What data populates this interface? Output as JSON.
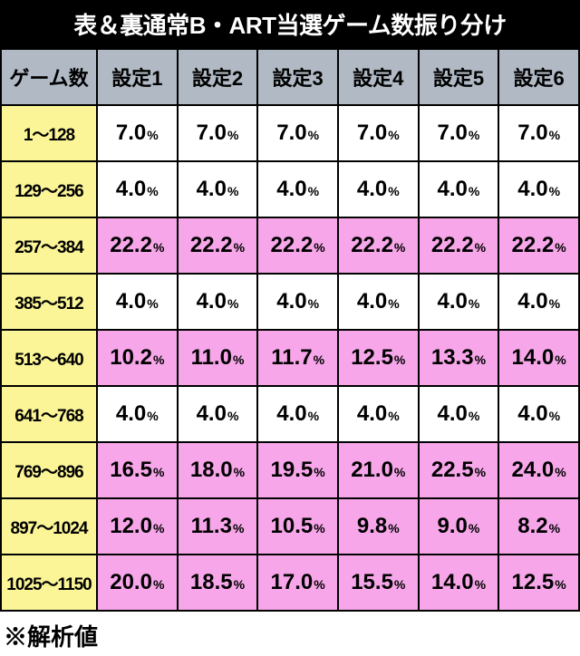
{
  "title": "表＆裏通常B・ART当選ゲーム数振り分け",
  "footnote": "※解析値",
  "pct_symbol": "%",
  "columns": [
    "ゲーム数",
    "設定1",
    "設定2",
    "設定3",
    "設定4",
    "設定5",
    "設定6"
  ],
  "header_bg": "#b0b9c4",
  "rowlabel_bg": "#fbf597",
  "highlight_bg": "#f7a7e9",
  "plain_bg": "#ffffff",
  "border_color": "#000000",
  "title_bg": "#000000",
  "title_color": "#ffffff",
  "rows": [
    {
      "label": "1～128",
      "highlight": false,
      "values": [
        "7.0",
        "7.0",
        "7.0",
        "7.0",
        "7.0",
        "7.0"
      ]
    },
    {
      "label": "129～256",
      "highlight": false,
      "values": [
        "4.0",
        "4.0",
        "4.0",
        "4.0",
        "4.0",
        "4.0"
      ]
    },
    {
      "label": "257～384",
      "highlight": true,
      "values": [
        "22.2",
        "22.2",
        "22.2",
        "22.2",
        "22.2",
        "22.2"
      ]
    },
    {
      "label": "385～512",
      "highlight": false,
      "values": [
        "4.0",
        "4.0",
        "4.0",
        "4.0",
        "4.0",
        "4.0"
      ]
    },
    {
      "label": "513～640",
      "highlight": true,
      "values": [
        "10.2",
        "11.0",
        "11.7",
        "12.5",
        "13.3",
        "14.0"
      ]
    },
    {
      "label": "641～768",
      "highlight": false,
      "values": [
        "4.0",
        "4.0",
        "4.0",
        "4.0",
        "4.0",
        "4.0"
      ]
    },
    {
      "label": "769～896",
      "highlight": true,
      "values": [
        "16.5",
        "18.0",
        "19.5",
        "21.0",
        "22.5",
        "24.0"
      ]
    },
    {
      "label": "897～1024",
      "highlight": true,
      "values": [
        "12.0",
        "11.3",
        "10.5",
        "9.8",
        "9.0",
        "8.2"
      ]
    },
    {
      "label": "1025～1150",
      "highlight": true,
      "values": [
        "20.0",
        "18.5",
        "17.0",
        "15.5",
        "14.0",
        "12.5"
      ]
    }
  ]
}
